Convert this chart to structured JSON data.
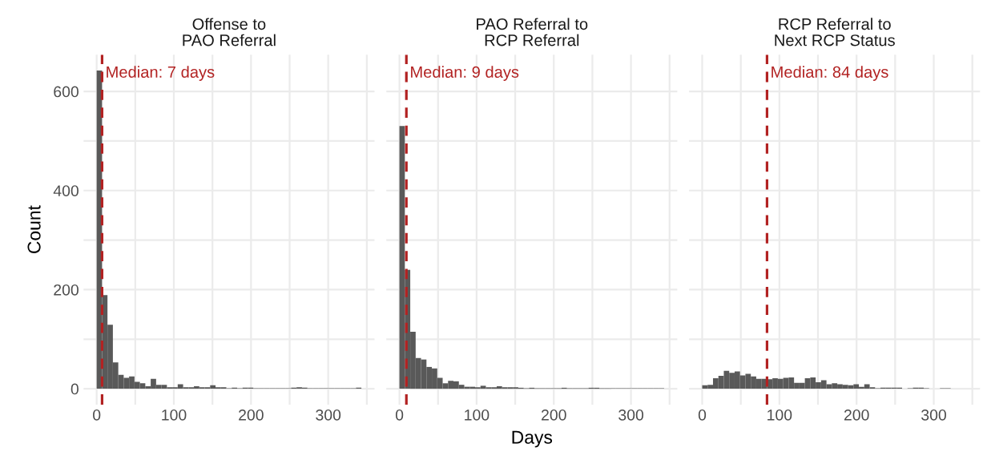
{
  "chart_data": [
    {
      "type": "histogram",
      "title": "Offense to\nPAO Referral",
      "ylabel": "Count",
      "color": "#595959",
      "bins": [
        0,
        7,
        14,
        21,
        28,
        35,
        42,
        49,
        56,
        63,
        70,
        77,
        84,
        91,
        98,
        105,
        112,
        119,
        126,
        133,
        140,
        147,
        154,
        161,
        168,
        175,
        182,
        189,
        196,
        203,
        210,
        217,
        224,
        231,
        238,
        245,
        252,
        259,
        266,
        273,
        280,
        287,
        294,
        301,
        308,
        315,
        322,
        329,
        336,
        343
      ],
      "values": [
        642,
        189,
        129,
        53,
        28,
        22,
        25,
        14,
        11,
        5,
        20,
        8,
        8,
        3,
        3,
        9,
        3,
        3,
        5,
        3,
        3,
        7,
        3,
        3,
        1,
        2,
        1,
        2,
        2,
        1,
        1,
        1,
        1,
        1,
        1,
        1,
        2,
        3,
        2,
        1,
        1,
        1,
        1,
        1,
        1,
        1,
        1,
        1,
        2
      ],
      "xlim": [
        -17,
        360
      ],
      "xticks": [
        0,
        {
          "value": 50,
          "label": null
        },
        100,
        {
          "value": 150,
          "label": null
        },
        200,
        {
          "value": 250,
          "label": null
        },
        300,
        {
          "value": 350,
          "label": null
        }
      ],
      "ylim": [
        -32,
        674
      ],
      "yticks": [
        0,
        {
          "value": 100,
          "label": null
        },
        200,
        {
          "value": 300,
          "label": null
        },
        400,
        {
          "value": 500,
          "label": null
        },
        600
      ],
      "ref_lines": [
        {
          "axis": "x",
          "value": 7,
          "label": "Median: 7 days",
          "color": "#b22222",
          "line_style": "dashed"
        }
      ],
      "grid": true
    },
    {
      "type": "histogram",
      "title": "PAO Referral to\nRCP Referral",
      "xlabel": "Days",
      "color": "#595959",
      "bins": [
        0,
        7,
        14,
        21,
        28,
        35,
        42,
        49,
        56,
        63,
        70,
        77,
        84,
        91,
        98,
        105,
        112,
        119,
        126,
        133,
        140,
        147,
        154,
        161,
        168,
        175,
        182,
        189,
        196,
        203,
        210,
        217,
        224,
        231,
        238,
        245,
        252,
        259,
        266,
        273,
        280,
        287,
        294,
        301,
        308,
        315,
        322,
        329,
        336,
        343
      ],
      "values": [
        530,
        240,
        115,
        62,
        59,
        44,
        41,
        22,
        11,
        16,
        15,
        8,
        4,
        4,
        3,
        6,
        3,
        3,
        5,
        3,
        3,
        3,
        2,
        1,
        2,
        1,
        1,
        1,
        1,
        1,
        2,
        1,
        1,
        1,
        1,
        2,
        2,
        1,
        1,
        1,
        1,
        1,
        1,
        1,
        1,
        1,
        1,
        1,
        1
      ],
      "xlim": [
        -17,
        360
      ],
      "xticks": [
        0,
        {
          "value": 50,
          "label": null
        },
        100,
        {
          "value": 150,
          "label": null
        },
        200,
        {
          "value": 250,
          "label": null
        },
        300,
        {
          "value": 350,
          "label": null
        }
      ],
      "ylim": [
        -32,
        674
      ],
      "yticks": [
        0,
        {
          "value": 100,
          "label": null
        },
        200,
        {
          "value": 300,
          "label": null
        },
        400,
        {
          "value": 500,
          "label": null
        },
        600
      ],
      "ref_lines": [
        {
          "axis": "x",
          "value": 9,
          "label": "Median: 9 days",
          "color": "#b22222",
          "line_style": "dashed"
        }
      ],
      "grid": true,
      "tick_labels": "x"
    },
    {
      "type": "histogram",
      "title": "RCP Referral to\nNext RCP Status",
      "color": "#595959",
      "bins": [
        0,
        7,
        14,
        21,
        28,
        35,
        42,
        49,
        56,
        63,
        70,
        77,
        84,
        91,
        98,
        105,
        112,
        119,
        126,
        133,
        140,
        147,
        154,
        161,
        168,
        175,
        182,
        189,
        196,
        203,
        210,
        217,
        224,
        231,
        238,
        245,
        252,
        259,
        266,
        273,
        280,
        287,
        294,
        301,
        308,
        315,
        322,
        329,
        336,
        343
      ],
      "values": [
        7,
        8,
        21,
        26,
        36,
        32,
        35,
        27,
        30,
        25,
        20,
        20,
        19,
        21,
        20,
        22,
        23,
        12,
        12,
        21,
        23,
        13,
        17,
        9,
        11,
        9,
        8,
        7,
        9,
        4,
        9,
        3,
        1,
        2,
        2,
        2,
        2,
        0,
        1,
        2,
        2,
        1,
        0,
        0,
        1,
        1,
        0,
        0,
        0
      ],
      "xlim": [
        -17,
        360
      ],
      "xticks": [
        0,
        {
          "value": 50,
          "label": null
        },
        100,
        {
          "value": 150,
          "label": null
        },
        200,
        {
          "value": 250,
          "label": null
        },
        300,
        {
          "value": 350,
          "label": null
        }
      ],
      "ylim": [
        -32,
        674
      ],
      "yticks": [
        0,
        {
          "value": 100,
          "label": null
        },
        200,
        {
          "value": 300,
          "label": null
        },
        400,
        {
          "value": 500,
          "label": null
        },
        600
      ],
      "ref_lines": [
        {
          "axis": "x",
          "value": 84,
          "label": "Median: 84 days",
          "color": "#b22222",
          "line_style": "dashed"
        }
      ],
      "grid": true,
      "tick_labels": "x"
    }
  ]
}
